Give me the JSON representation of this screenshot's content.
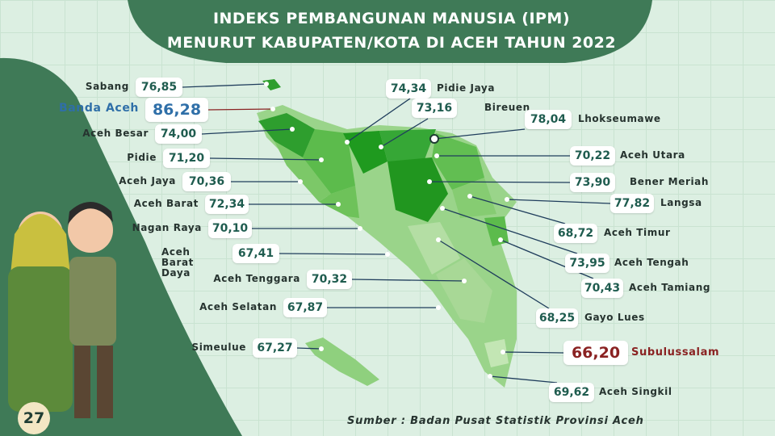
{
  "header": {
    "title_line1": "INDEKS PEMBANGUNAN MANUSIA (IPM)",
    "title_line2": "MENURUT KABUPATEN/KOTA DI ACEH TAHUN 2022"
  },
  "regions": [
    {
      "name": "Sabang",
      "value": "76,85"
    },
    {
      "name": "Banda Aceh",
      "value": "86,28"
    },
    {
      "name": "Aceh Besar",
      "value": "74,00"
    },
    {
      "name": "Pidie",
      "value": "71,20"
    },
    {
      "name": "Aceh Jaya",
      "value": "70,36"
    },
    {
      "name": "Aceh Barat",
      "value": "72,34"
    },
    {
      "name": "Nagan Raya",
      "value": "70,10"
    },
    {
      "name": "Aceh Barat Daya",
      "value": "67,41"
    },
    {
      "name": "Aceh Tenggara",
      "value": "70,32"
    },
    {
      "name": "Aceh Selatan",
      "value": "67,87"
    },
    {
      "name": "Simeulue",
      "value": "67,27"
    },
    {
      "name": "Pidie Jaya",
      "value": "74,34"
    },
    {
      "name": "Bireuen",
      "value": "73,16"
    },
    {
      "name": "Lhokseumawe",
      "value": "78,04"
    },
    {
      "name": "Aceh Utara",
      "value": "70,22"
    },
    {
      "name": "Bener Meriah",
      "value": "73,90"
    },
    {
      "name": "Langsa",
      "value": "77,82"
    },
    {
      "name": "Aceh Timur",
      "value": "68,72"
    },
    {
      "name": "Aceh Tengah",
      "value": "73,95"
    },
    {
      "name": "Aceh Tamiang",
      "value": "70,43"
    },
    {
      "name": "Gayo Lues",
      "value": "68,25"
    },
    {
      "name": "Subulussalam",
      "value": "66,20"
    },
    {
      "name": "Aceh Singkil",
      "value": "69,62"
    }
  ],
  "source": "Sumber : Badan Pusat Statistik Provinsi Aceh",
  "page_number": "27"
}
